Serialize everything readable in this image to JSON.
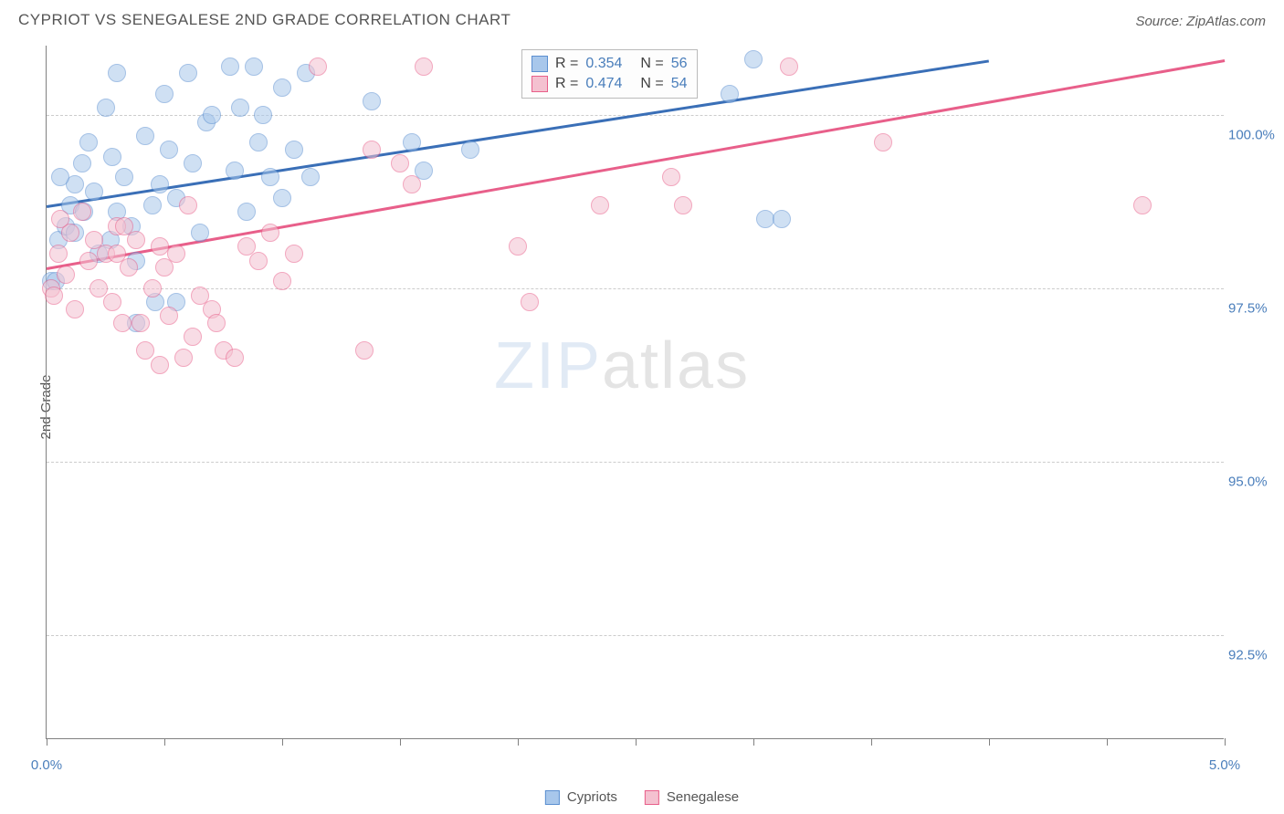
{
  "title": "CYPRIOT VS SENEGALESE 2ND GRADE CORRELATION CHART",
  "source_label": "Source: ZipAtlas.com",
  "y_axis_label": "2nd Grade",
  "watermark": {
    "part1": "ZIP",
    "part2": "atlas"
  },
  "chart": {
    "type": "scatter",
    "xlim": [
      0.0,
      5.0
    ],
    "ylim": [
      91.0,
      101.0
    ],
    "x_ticks": [
      0.0,
      0.5,
      1.0,
      1.5,
      2.0,
      2.5,
      3.0,
      3.5,
      4.0,
      4.5,
      5.0
    ],
    "x_tick_labels": {
      "0": "0.0%",
      "5": "5.0%"
    },
    "y_gridlines": [
      92.5,
      95.0,
      97.5,
      100.0
    ],
    "y_tick_labels": {
      "92.5": "92.5%",
      "95.0": "95.0%",
      "97.5": "97.5%",
      "100.0": "100.0%"
    },
    "background_color": "#ffffff",
    "grid_color": "#cccccc",
    "axis_color": "#808080",
    "label_color": "#4a7ebb",
    "point_radius": 10,
    "point_opacity": 0.55,
    "series": [
      {
        "name": "Cypriots",
        "fill": "#a8c7eb",
        "stroke": "#5b8fd0",
        "line_color": "#3a6fb7",
        "r_value": "0.354",
        "n_value": "56",
        "regression": {
          "x1": 0.0,
          "y1": 98.7,
          "x2": 4.0,
          "y2": 100.8
        },
        "points": [
          [
            0.02,
            97.6
          ],
          [
            0.04,
            97.6
          ],
          [
            0.05,
            98.2
          ],
          [
            0.08,
            98.4
          ],
          [
            0.1,
            98.7
          ],
          [
            0.12,
            99.0
          ],
          [
            0.12,
            98.3
          ],
          [
            0.15,
            99.3
          ],
          [
            0.18,
            99.6
          ],
          [
            0.2,
            98.9
          ],
          [
            0.22,
            98.0
          ],
          [
            0.25,
            100.1
          ],
          [
            0.28,
            99.4
          ],
          [
            0.3,
            100.6
          ],
          [
            0.3,
            98.6
          ],
          [
            0.33,
            99.1
          ],
          [
            0.36,
            98.4
          ],
          [
            0.38,
            97.9
          ],
          [
            0.42,
            99.7
          ],
          [
            0.45,
            98.7
          ],
          [
            0.46,
            97.3
          ],
          [
            0.48,
            99.0
          ],
          [
            0.5,
            100.3
          ],
          [
            0.52,
            99.5
          ],
          [
            0.55,
            98.8
          ],
          [
            0.6,
            100.6
          ],
          [
            0.62,
            99.3
          ],
          [
            0.65,
            98.3
          ],
          [
            0.68,
            99.9
          ],
          [
            0.7,
            100.0
          ],
          [
            0.78,
            100.7
          ],
          [
            0.8,
            99.2
          ],
          [
            0.82,
            100.1
          ],
          [
            0.85,
            98.6
          ],
          [
            0.88,
            100.7
          ],
          [
            0.9,
            99.6
          ],
          [
            0.92,
            100.0
          ],
          [
            0.95,
            99.1
          ],
          [
            1.0,
            98.8
          ],
          [
            1.0,
            100.4
          ],
          [
            1.05,
            99.5
          ],
          [
            1.1,
            100.6
          ],
          [
            1.12,
            99.1
          ],
          [
            1.38,
            100.2
          ],
          [
            1.55,
            99.6
          ],
          [
            1.6,
            99.2
          ],
          [
            1.8,
            99.5
          ],
          [
            2.9,
            100.3
          ],
          [
            3.0,
            100.8
          ],
          [
            3.05,
            98.5
          ],
          [
            3.12,
            98.5
          ],
          [
            0.38,
            97.0
          ],
          [
            0.55,
            97.3
          ],
          [
            0.16,
            98.6
          ],
          [
            0.06,
            99.1
          ],
          [
            0.27,
            98.2
          ]
        ]
      },
      {
        "name": "Senegalese",
        "fill": "#f4c1d0",
        "stroke": "#e85f8a",
        "line_color": "#e85f8a",
        "r_value": "0.474",
        "n_value": "54",
        "regression": {
          "x1": 0.0,
          "y1": 97.8,
          "x2": 5.0,
          "y2": 100.8
        },
        "points": [
          [
            0.02,
            97.5
          ],
          [
            0.05,
            98.0
          ],
          [
            0.08,
            97.7
          ],
          [
            0.1,
            98.3
          ],
          [
            0.12,
            97.2
          ],
          [
            0.15,
            98.6
          ],
          [
            0.18,
            97.9
          ],
          [
            0.2,
            98.2
          ],
          [
            0.22,
            97.5
          ],
          [
            0.25,
            98.0
          ],
          [
            0.28,
            97.3
          ],
          [
            0.3,
            98.4
          ],
          [
            0.32,
            97.0
          ],
          [
            0.35,
            97.8
          ],
          [
            0.38,
            98.2
          ],
          [
            0.4,
            97.0
          ],
          [
            0.42,
            96.6
          ],
          [
            0.45,
            97.5
          ],
          [
            0.48,
            96.4
          ],
          [
            0.5,
            97.8
          ],
          [
            0.52,
            97.1
          ],
          [
            0.55,
            98.0
          ],
          [
            0.58,
            96.5
          ],
          [
            0.6,
            98.7
          ],
          [
            0.62,
            96.8
          ],
          [
            0.65,
            97.4
          ],
          [
            0.7,
            97.2
          ],
          [
            0.72,
            97.0
          ],
          [
            0.75,
            96.6
          ],
          [
            0.8,
            96.5
          ],
          [
            0.85,
            98.1
          ],
          [
            0.9,
            97.9
          ],
          [
            0.95,
            98.3
          ],
          [
            1.0,
            97.6
          ],
          [
            1.05,
            98.0
          ],
          [
            1.15,
            100.7
          ],
          [
            1.35,
            96.6
          ],
          [
            1.38,
            99.5
          ],
          [
            1.5,
            99.3
          ],
          [
            1.55,
            99.0
          ],
          [
            1.6,
            100.7
          ],
          [
            2.0,
            98.1
          ],
          [
            2.05,
            97.3
          ],
          [
            2.35,
            98.7
          ],
          [
            2.65,
            99.1
          ],
          [
            2.7,
            98.7
          ],
          [
            3.15,
            100.7
          ],
          [
            3.55,
            99.6
          ],
          [
            4.65,
            98.7
          ],
          [
            0.03,
            97.4
          ],
          [
            0.06,
            98.5
          ],
          [
            0.48,
            98.1
          ],
          [
            0.33,
            98.4
          ],
          [
            0.3,
            98.0
          ]
        ]
      }
    ]
  },
  "legend_top": {
    "rprefix": "R =",
    "nprefix": "N ="
  },
  "bottom_legend": [
    "Cypriots",
    "Senegalese"
  ]
}
